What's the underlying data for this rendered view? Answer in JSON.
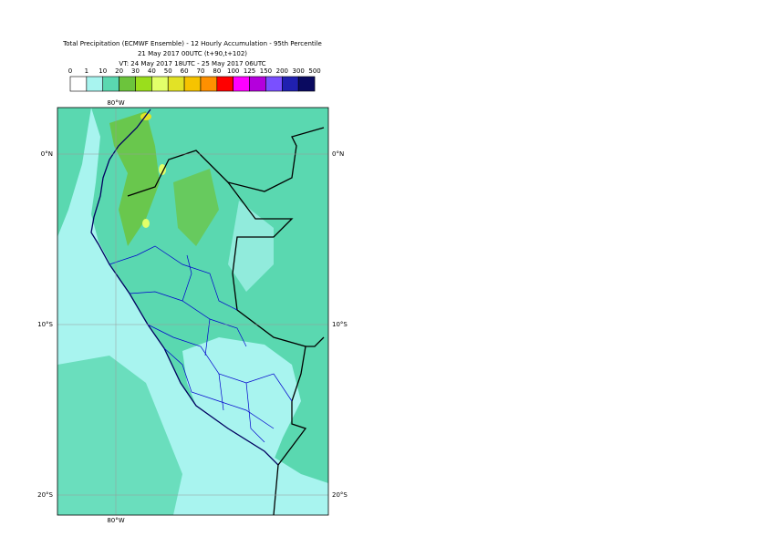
{
  "header": {
    "title": "Total Precipitation (ECMWF Ensemble) - 12 Hourly Accumulation - 95th Percentile",
    "run": "21 May 2017 00UTC (t+90,t+102)",
    "valid": "VT: 24 May 2017 18UTC - 25 May 2017 06UTC"
  },
  "legend": {
    "labels": [
      0,
      1,
      10,
      20,
      30,
      40,
      50,
      60,
      70,
      80,
      100,
      125,
      150,
      200,
      300,
      500
    ],
    "colors": [
      "#ffffff",
      "#a8f4ef",
      "#5ad8b0",
      "#6cc43c",
      "#9ade1c",
      "#e2ff6a",
      "#e2e226",
      "#f6c300",
      "#ff9000",
      "#ff0000",
      "#ff00ff",
      "#b400dc",
      "#7a50ff",
      "#2020b0",
      "#0a0a60"
    ]
  },
  "map": {
    "lon_labels": [
      "80°W"
    ],
    "lat_labels": [
      "0°N",
      "10°S",
      "20°S"
    ]
  }
}
